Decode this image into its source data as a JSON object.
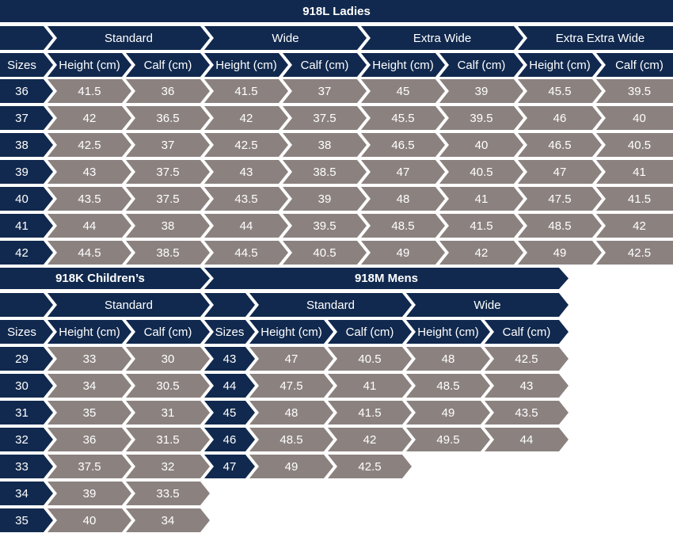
{
  "colors": {
    "navy": "#11294e",
    "gray": "#8b8280",
    "background": "#ffffff"
  },
  "chart_data": [
    {
      "type": "table",
      "title": "918L Ladies",
      "groups": [
        "Standard",
        "Wide",
        "Extra Wide",
        "Extra Extra Wide"
      ],
      "columns": [
        "Sizes",
        "Height (cm)",
        "Calf (cm)",
        "Height (cm)",
        "Calf (cm)",
        "Height (cm)",
        "Calf (cm)",
        "Height (cm)",
        "Calf (cm)"
      ],
      "rows": [
        {
          "size": "36",
          "values": [
            "41.5",
            "36",
            "41.5",
            "37",
            "45",
            "39",
            "45.5",
            "39.5"
          ]
        },
        {
          "size": "37",
          "values": [
            "42",
            "36.5",
            "42",
            "37.5",
            "45.5",
            "39.5",
            "46",
            "40"
          ]
        },
        {
          "size": "38",
          "values": [
            "42.5",
            "37",
            "42.5",
            "38",
            "46.5",
            "40",
            "46.5",
            "40.5"
          ]
        },
        {
          "size": "39",
          "values": [
            "43",
            "37.5",
            "43",
            "38.5",
            "47",
            "40.5",
            "47",
            "41"
          ]
        },
        {
          "size": "40",
          "values": [
            "43.5",
            "37.5",
            "43.5",
            "39",
            "48",
            "41",
            "47.5",
            "41.5"
          ]
        },
        {
          "size": "41",
          "values": [
            "44",
            "38",
            "44",
            "39.5",
            "48.5",
            "41.5",
            "48.5",
            "42"
          ]
        },
        {
          "size": "42",
          "values": [
            "44.5",
            "38.5",
            "44.5",
            "40.5",
            "49",
            "42",
            "49",
            "42.5"
          ]
        }
      ]
    },
    {
      "type": "table",
      "title": "918K Children’s",
      "groups": [
        "Standard"
      ],
      "columns": [
        "Sizes",
        "Height (cm)",
        "Calf (cm)"
      ],
      "rows": [
        {
          "size": "29",
          "values": [
            "33",
            "30"
          ]
        },
        {
          "size": "30",
          "values": [
            "34",
            "30.5"
          ]
        },
        {
          "size": "31",
          "values": [
            "35",
            "31"
          ]
        },
        {
          "size": "32",
          "values": [
            "36",
            "31.5"
          ]
        },
        {
          "size": "33",
          "values": [
            "37.5",
            "32"
          ]
        },
        {
          "size": "34",
          "values": [
            "39",
            "33.5"
          ]
        },
        {
          "size": "35",
          "values": [
            "40",
            "34"
          ]
        }
      ]
    },
    {
      "type": "table",
      "title": "918M Mens",
      "groups": [
        "Standard",
        "Wide"
      ],
      "columns": [
        "Sizes",
        "Height (cm)",
        "Calf (cm)",
        "Height (cm)",
        "Calf (cm)"
      ],
      "rows": [
        {
          "size": "43",
          "values": [
            "47",
            "40.5",
            "48",
            "42.5"
          ]
        },
        {
          "size": "44",
          "values": [
            "47.5",
            "41",
            "48.5",
            "43"
          ]
        },
        {
          "size": "45",
          "values": [
            "48",
            "41.5",
            "49",
            "43.5"
          ]
        },
        {
          "size": "46",
          "values": [
            "48.5",
            "42",
            "49.5",
            "44"
          ]
        },
        {
          "size": "47",
          "values": [
            "49",
            "42.5"
          ]
        }
      ]
    }
  ]
}
